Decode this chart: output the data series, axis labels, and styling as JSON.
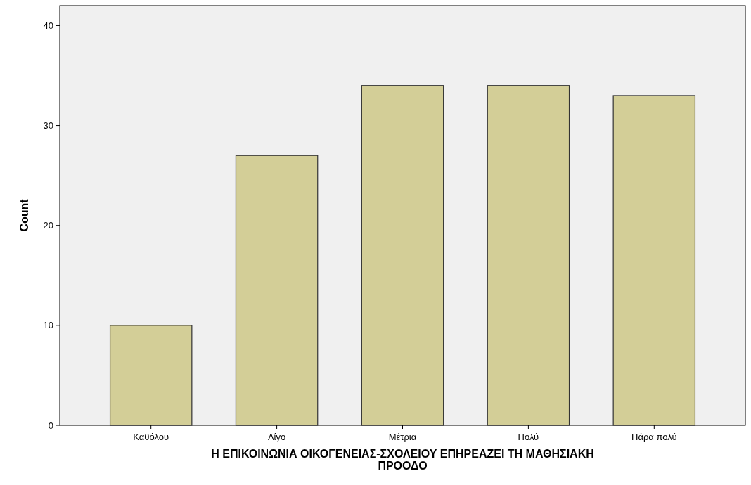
{
  "chart_data": {
    "type": "bar",
    "xlabel": "Η ΕΠΙΚΟΙΝΩΝΙΑ ΟΙΚΟΓΕΝΕΙΑΣ-ΣΧΟΛΕΙΟΥ ΕΠΗΡΕΑΖΕΙ ΤΗ ΜΑΘΗΣΙΑΚΗ ΠΡΟΟΔΟ",
    "ylabel": "Count",
    "categories": [
      "Καθόλου",
      "Λίγο",
      "Μέτρια",
      "Πολύ",
      "Πάρα πολύ"
    ],
    "values": [
      10,
      27,
      34,
      34,
      33
    ],
    "color": "#d3ce97",
    "ylim": [
      0,
      42
    ],
    "yticks": [
      0,
      10,
      20,
      30,
      40
    ],
    "grid": false
  }
}
